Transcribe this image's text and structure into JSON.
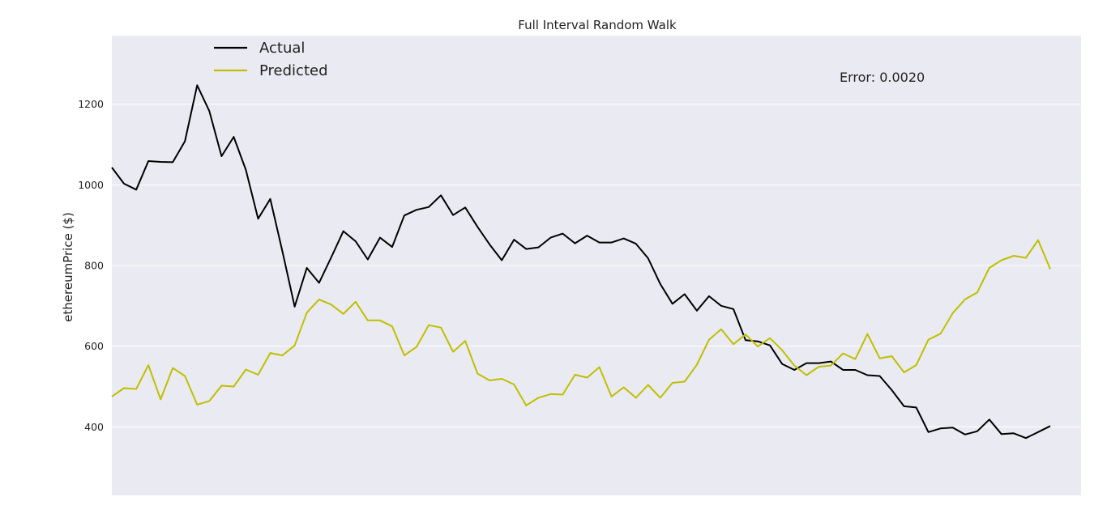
{
  "chart_data": {
    "type": "line",
    "title": "Full Interval Random Walk",
    "xlabel": "",
    "ylabel": "ethereumPrice ($)",
    "ylim": [
      230,
      1370
    ],
    "y_ticks": [
      400,
      600,
      800,
      1000,
      1200
    ],
    "grid": true,
    "legend_placement": "top-left",
    "background_color": "#eaeaf2",
    "grid_color": "#ffffff",
    "annotation": "Error: 0.0020",
    "series": [
      {
        "name": "Actual",
        "color": "#000000",
        "values": [
          1043,
          1003,
          988,
          1059,
          1057,
          1056,
          1108,
          1247,
          1183,
          1071,
          1119,
          1037,
          916,
          965,
          835,
          698,
          794,
          757,
          820,
          885,
          860,
          815,
          869,
          846,
          924,
          938,
          945,
          974,
          925,
          944,
          896,
          852,
          813,
          864,
          841,
          845,
          869,
          879,
          855,
          874,
          857,
          857,
          867,
          854,
          818,
          754,
          705,
          729,
          688,
          724,
          700,
          692,
          615,
          612,
          602,
          556,
          541,
          558,
          558,
          562,
          541,
          541,
          528,
          526,
          491,
          451,
          448,
          387,
          396,
          398,
          381,
          389,
          418,
          382,
          384,
          372,
          387,
          402
        ]
      },
      {
        "name": "Predicted",
        "color": "#bfbf00",
        "values": [
          475,
          496,
          494,
          553,
          468,
          546,
          526,
          455,
          464,
          502,
          500,
          542,
          529,
          583,
          577,
          602,
          683,
          716,
          703,
          680,
          710,
          664,
          664,
          649,
          577,
          598,
          652,
          646,
          586,
          613,
          532,
          515,
          519,
          505,
          453,
          472,
          481,
          480,
          529,
          522,
          548,
          475,
          498,
          472,
          504,
          472,
          509,
          512,
          554,
          616,
          642,
          605,
          629,
          599,
          620,
          590,
          552,
          528,
          549,
          552,
          582,
          568,
          630,
          570,
          575,
          535,
          553,
          616,
          631,
          682,
          716,
          733,
          794,
          813,
          824,
          819,
          863,
          791
        ]
      }
    ]
  }
}
